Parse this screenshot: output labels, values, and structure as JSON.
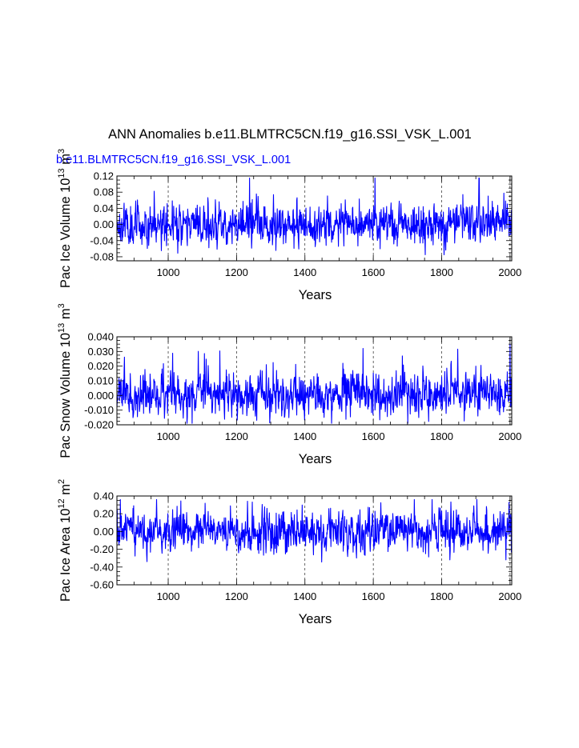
{
  "title": "ANN Anomalies b.e11.BLMTRC5CN.f19_g16.SSI_VSK_L.001",
  "legend_label": "b.e11.BLMTRC5CN.f19_g16.SSI_VSK_L.001",
  "colors": {
    "series": "#0000ff",
    "axes": "#000000",
    "grid": "#000000"
  },
  "chart_data": [
    {
      "type": "line",
      "ylabel": "Pac Ice Volume 10",
      "ylabel_exp": "13",
      "ylabel_unit": "m",
      "ylabel_unit_exp": "3",
      "xlabel": "Years",
      "xlim": [
        850,
        2005
      ],
      "ylim": [
        -0.09,
        0.12
      ],
      "x_ticks": [
        "1000",
        "1200",
        "1400",
        "1600",
        "1800",
        "2000"
      ],
      "y_ticks": [
        "0.12",
        "0.08",
        "0.04",
        "0.00",
        "-0.04",
        "-0.08"
      ],
      "grid": "dashed vertical at labeled x ticks",
      "series": [
        {
          "x_range": [
            850,
            2005
          ],
          "spread": 0.024,
          "y_min": -0.075,
          "y_max": 0.115,
          "seed": 11
        }
      ]
    },
    {
      "type": "line",
      "ylabel": "Pac Snow Volume 10",
      "ylabel_exp": "13",
      "ylabel_unit": "m",
      "ylabel_unit_exp": "3",
      "xlabel": "Years",
      "xlim": [
        850,
        2005
      ],
      "ylim": [
        -0.02,
        0.04
      ],
      "x_ticks": [
        "1000",
        "1200",
        "1400",
        "1600",
        "1800",
        "2000"
      ],
      "y_ticks": [
        "0.040",
        "0.030",
        "0.020",
        "0.010",
        "0.000",
        "-0.010",
        "-0.020"
      ],
      "grid": "dashed vertical at labeled x ticks",
      "series": [
        {
          "x_range": [
            850,
            2005
          ],
          "spread": 0.007,
          "y_min": -0.019,
          "y_max": 0.035,
          "seed": 23
        }
      ]
    },
    {
      "type": "line",
      "ylabel": "Pac Ice Area 10",
      "ylabel_exp": "12",
      "ylabel_unit": "m",
      "ylabel_unit_exp": "2",
      "xlabel": "Years",
      "xlim": [
        850,
        2005
      ],
      "ylim": [
        -0.6,
        0.4
      ],
      "x_ticks": [
        "1000",
        "1200",
        "1400",
        "1600",
        "1800",
        "2000"
      ],
      "y_ticks": [
        "0.40",
        "0.20",
        "0.00",
        "-0.20",
        "-0.40",
        "-0.60"
      ],
      "grid": "dashed vertical at labeled x ticks",
      "series": [
        {
          "x_range": [
            850,
            2005
          ],
          "spread": 0.11,
          "y_min": -0.42,
          "y_max": 0.36,
          "seed": 37
        }
      ]
    }
  ]
}
